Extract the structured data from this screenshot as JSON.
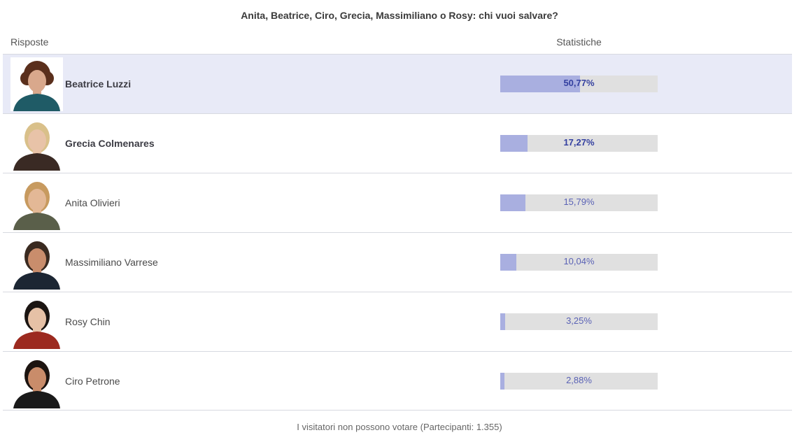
{
  "poll": {
    "question": "Anita, Beatrice, Ciro, Grecia, Massimiliano o Rosy: chi vuoi salvare?",
    "answers_header": "Risposte",
    "stats_header": "Statistiche",
    "footer": "I visitatori non possono votare (Partecipanti: 1.355)"
  },
  "colors": {
    "selected_row_bg": "#e8eaf7",
    "bar_track": "#e0e0e0",
    "bar_fill": "#a9afe0",
    "percent_text": "#5a62b5",
    "percent_text_strong": "#3440a0"
  },
  "options": [
    {
      "name": "Beatrice Luzzi",
      "percent_label": "50,77%",
      "value": 50.77,
      "bold": true,
      "selected": true,
      "avatar": "person-photo"
    },
    {
      "name": "Grecia Colmenares",
      "percent_label": "17,27%",
      "value": 17.27,
      "bold": true,
      "selected": false,
      "avatar": "person-photo"
    },
    {
      "name": "Anita Olivieri",
      "percent_label": "15,79%",
      "value": 15.79,
      "bold": false,
      "selected": false,
      "avatar": "person-photo"
    },
    {
      "name": "Massimiliano Varrese",
      "percent_label": "10,04%",
      "value": 10.04,
      "bold": false,
      "selected": false,
      "avatar": "person-photo"
    },
    {
      "name": "Rosy Chin",
      "percent_label": "3,25%",
      "value": 3.25,
      "bold": false,
      "selected": false,
      "avatar": "person-photo"
    },
    {
      "name": "Ciro Petrone",
      "percent_label": "2,88%",
      "value": 2.88,
      "bold": false,
      "selected": false,
      "avatar": "person-photo"
    }
  ]
}
